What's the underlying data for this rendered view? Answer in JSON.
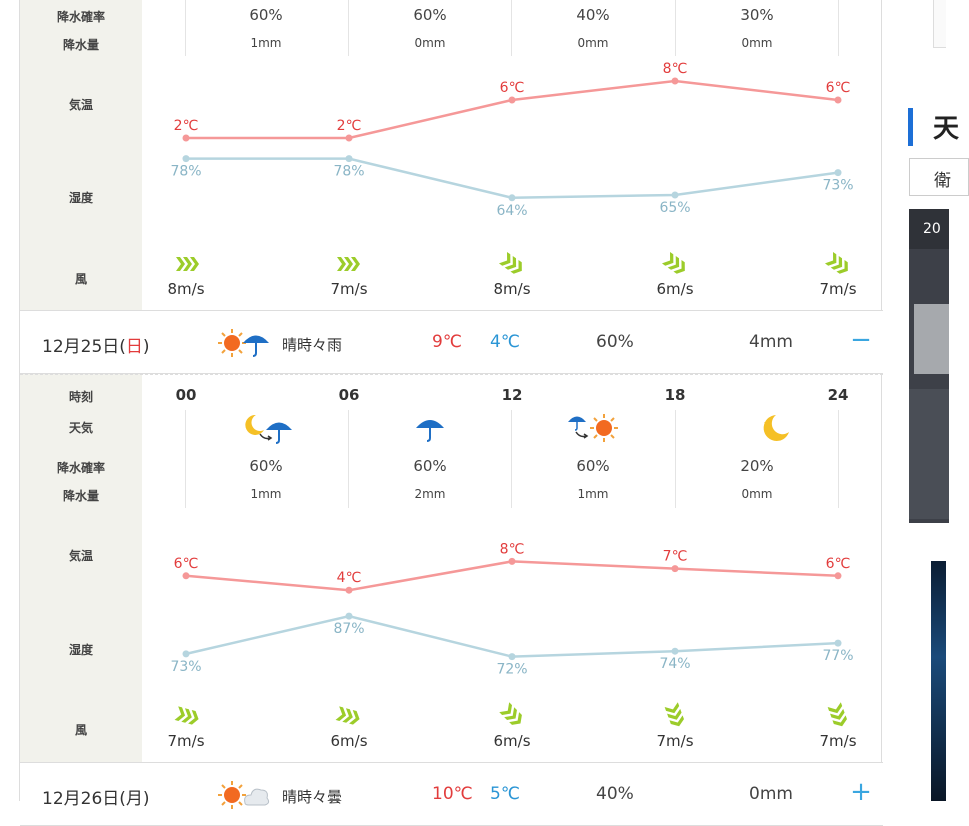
{
  "labels": {
    "time": "時刻",
    "weather": "天気",
    "pop": "降水確率",
    "amount": "降水量",
    "temp": "気温",
    "humidity": "湿度",
    "wind": "風"
  },
  "day24_tail": {
    "pops": [
      "60%",
      "60%",
      "40%",
      "30%"
    ],
    "amounts": [
      "1mm",
      "0mm",
      "0mm",
      "0mm"
    ],
    "temps": [
      2,
      2,
      6,
      8,
      6
    ],
    "temp_labels": [
      "2℃",
      "2℃",
      "6℃",
      "8℃",
      "6℃"
    ],
    "humidity": [
      78,
      78,
      64,
      65,
      73
    ],
    "humidity_labels": [
      "78%",
      "78%",
      "64%",
      "65%",
      "73%"
    ],
    "wind_speeds": [
      "8m/s",
      "7m/s",
      "8m/s",
      "6m/s",
      "7m/s"
    ]
  },
  "day25": {
    "date": "12月25日(",
    "dow": "日",
    "date_close": ")",
    "desc": "晴時々雨",
    "hi": "9℃",
    "lo": "4℃",
    "pop": "60%",
    "amount": "4mm",
    "toggle": "−",
    "hours": [
      "00",
      "06",
      "12",
      "18",
      "24"
    ],
    "pops": [
      "60%",
      "60%",
      "60%",
      "20%"
    ],
    "amounts": [
      "1mm",
      "2mm",
      "1mm",
      "0mm"
    ],
    "temps": [
      6,
      4,
      8,
      7,
      6
    ],
    "temp_labels": [
      "6℃",
      "4℃",
      "8℃",
      "7℃",
      "6℃"
    ],
    "humidity": [
      73,
      87,
      72,
      74,
      77
    ],
    "humidity_labels": [
      "73%",
      "87%",
      "72%",
      "74%",
      "77%"
    ],
    "wind_speeds": [
      "7m/s",
      "6m/s",
      "6m/s",
      "7m/s",
      "7m/s"
    ]
  },
  "day26": {
    "date": "12月26日(月)",
    "desc": "晴時々曇",
    "hi": "10℃",
    "lo": "5℃",
    "pop": "40%",
    "amount": "0mm",
    "toggle": "+"
  },
  "colors": {
    "temp_line": "#f59898",
    "humidity_line": "#b6d5df",
    "temp_text": "#e23c3c",
    "humidity_text": "#8ab5c6",
    "wind_icon": "#9ccc2a",
    "accent": "#3aa6e0"
  },
  "side": {
    "heading_fragment": "天",
    "box_fragment": "衛",
    "map_text": "20"
  }
}
